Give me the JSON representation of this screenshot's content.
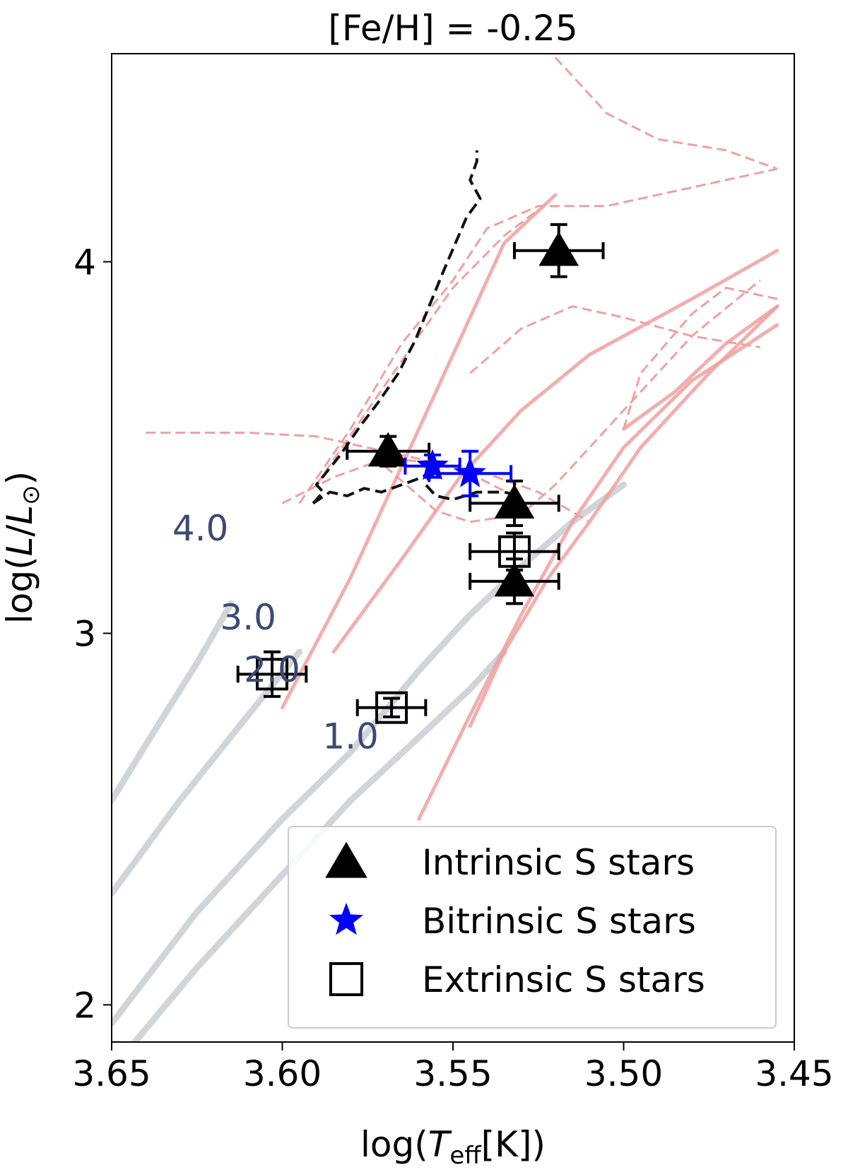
{
  "chart_data": {
    "type": "scatter",
    "title": "[Fe/H] = -0.25",
    "xlabel": "log(T_eff[K])",
    "ylabel": "log(L/L_⊙)",
    "x_axis_reversed": true,
    "xlim": [
      3.65,
      3.45
    ],
    "ylim": [
      1.9,
      4.56
    ],
    "xticks": [
      3.65,
      3.6,
      3.55,
      3.5,
      3.45
    ],
    "xtick_labels": [
      "3.65",
      "3.60",
      "3.55",
      "3.50",
      "3.45"
    ],
    "yticks": [
      2,
      3,
      4
    ],
    "ytick_labels": [
      "2",
      "3",
      "4"
    ],
    "grid": false,
    "legend_position": "lower-right",
    "series": [
      {
        "name": "Intrinsic S stars",
        "marker": "triangle",
        "color": "#000000",
        "points": [
          {
            "x": 3.519,
            "y": 4.03,
            "xerr": 0.013,
            "yerr": 0.07
          },
          {
            "x": 3.569,
            "y": 3.49,
            "xerr": 0.012,
            "yerr": 0.04
          },
          {
            "x": 3.532,
            "y": 3.35,
            "xerr": 0.013,
            "yerr": 0.06
          },
          {
            "x": 3.532,
            "y": 3.14,
            "xerr": 0.013,
            "yerr": 0.06
          }
        ]
      },
      {
        "name": "Bitrinsic S stars",
        "marker": "star",
        "color": "#0000ff",
        "points": [
          {
            "x": 3.556,
            "y": 3.45,
            "xerr": 0.008,
            "yerr": 0.03
          },
          {
            "x": 3.545,
            "y": 3.43,
            "xerr": 0.012,
            "yerr": 0.06
          }
        ]
      },
      {
        "name": "Extrinsic S stars",
        "marker": "open-square",
        "color": "#000000",
        "points": [
          {
            "x": 3.603,
            "y": 2.89,
            "xerr": 0.01,
            "yerr": 0.06
          },
          {
            "x": 3.568,
            "y": 2.8,
            "xerr": 0.01,
            "yerr": 0.025
          },
          {
            "x": 3.532,
            "y": 3.22,
            "xerr": 0.013,
            "yerr": 0.05
          }
        ]
      }
    ],
    "mass_labels": [
      {
        "text": "4.0",
        "x": 3.624,
        "y": 3.25
      },
      {
        "text": "3.0",
        "x": 3.61,
        "y": 3.01
      },
      {
        "text": "2.0",
        "x": 3.603,
        "y": 2.87
      },
      {
        "text": "1.0",
        "x": 3.58,
        "y": 2.69
      }
    ],
    "tracks": {
      "pink_color": "#f0a0a0",
      "grey_color": "#c9cdd2",
      "black_dashed_color": "#111111",
      "pink_solid": [
        [
          [
            3.6,
            2.8
          ],
          [
            3.58,
            3.15
          ],
          [
            3.56,
            3.55
          ],
          [
            3.545,
            3.85
          ],
          [
            3.535,
            4.05
          ],
          [
            3.52,
            4.18
          ]
        ],
        [
          [
            3.585,
            2.95
          ],
          [
            3.565,
            3.2
          ],
          [
            3.548,
            3.42
          ],
          [
            3.53,
            3.6
          ],
          [
            3.51,
            3.75
          ],
          [
            3.48,
            3.9
          ],
          [
            3.455,
            4.03
          ]
        ],
        [
          [
            3.56,
            2.5
          ],
          [
            3.545,
            2.78
          ],
          [
            3.53,
            3.05
          ],
          [
            3.515,
            3.3
          ],
          [
            3.5,
            3.5
          ],
          [
            3.48,
            3.68
          ],
          [
            3.455,
            3.83
          ]
        ],
        [
          [
            3.545,
            2.75
          ],
          [
            3.535,
            2.95
          ],
          [
            3.522,
            3.15
          ],
          [
            3.51,
            3.3
          ],
          [
            3.495,
            3.5
          ],
          [
            3.475,
            3.7
          ],
          [
            3.455,
            3.88
          ]
        ],
        [
          [
            3.5,
            3.55
          ],
          [
            3.485,
            3.65
          ],
          [
            3.47,
            3.78
          ],
          [
            3.455,
            3.88
          ]
        ]
      ],
      "pink_dashed": [
        [
          [
            3.64,
            3.54
          ],
          [
            3.61,
            3.54
          ],
          [
            3.59,
            3.53
          ],
          [
            3.575,
            3.5
          ],
          [
            3.56,
            3.47
          ],
          [
            3.545,
            3.43
          ],
          [
            3.53,
            3.36
          ]
        ],
        [
          [
            3.595,
            3.35
          ],
          [
            3.58,
            3.55
          ],
          [
            3.565,
            3.78
          ],
          [
            3.55,
            3.95
          ],
          [
            3.54,
            4.09
          ],
          [
            3.525,
            4.15
          ],
          [
            3.505,
            4.15
          ],
          [
            3.48,
            4.2
          ],
          [
            3.455,
            4.25
          ]
        ],
        [
          [
            3.57,
            3.45
          ],
          [
            3.555,
            3.33
          ],
          [
            3.545,
            3.3
          ],
          [
            3.53,
            3.32
          ],
          [
            3.52,
            3.4
          ],
          [
            3.5,
            3.6
          ],
          [
            3.48,
            3.8
          ],
          [
            3.46,
            3.95
          ]
        ],
        [
          [
            3.52,
            4.55
          ],
          [
            3.505,
            4.4
          ],
          [
            3.49,
            4.33
          ],
          [
            3.47,
            4.3
          ],
          [
            3.455,
            4.25
          ]
        ],
        [
          [
            3.5,
            3.55
          ],
          [
            3.495,
            3.7
          ],
          [
            3.48,
            3.86
          ],
          [
            3.47,
            3.93
          ],
          [
            3.455,
            3.9
          ]
        ],
        [
          [
            3.545,
            3.7
          ],
          [
            3.53,
            3.82
          ],
          [
            3.515,
            3.88
          ],
          [
            3.5,
            3.85
          ],
          [
            3.48,
            3.8
          ],
          [
            3.46,
            3.77
          ]
        ],
        [
          [
            3.59,
            3.4
          ],
          [
            3.575,
            3.6
          ],
          [
            3.56,
            3.8
          ],
          [
            3.55,
            3.93
          ],
          [
            3.535,
            4.07
          ],
          [
            3.525,
            4.14
          ]
        ],
        [
          [
            3.6,
            3.35
          ],
          [
            3.585,
            3.42
          ],
          [
            3.57,
            3.47
          ],
          [
            3.555,
            3.46
          ],
          [
            3.54,
            3.43
          ],
          [
            3.525,
            3.38
          ],
          [
            3.51,
            3.3
          ]
        ]
      ],
      "grey": [
        [
          [
            3.65,
            2.3
          ],
          [
            3.63,
            2.55
          ],
          [
            3.61,
            2.78
          ],
          [
            3.595,
            2.95
          ]
        ],
        [
          [
            3.65,
            1.95
          ],
          [
            3.625,
            2.25
          ],
          [
            3.6,
            2.5
          ],
          [
            3.58,
            2.68
          ],
          [
            3.56,
            2.9
          ],
          [
            3.545,
            3.05
          ],
          [
            3.53,
            3.18
          ],
          [
            3.515,
            3.3
          ],
          [
            3.5,
            3.4
          ]
        ],
        [
          [
            3.645,
            1.88
          ],
          [
            3.625,
            2.1
          ],
          [
            3.6,
            2.35
          ],
          [
            3.58,
            2.55
          ],
          [
            3.56,
            2.72
          ],
          [
            3.545,
            2.85
          ],
          [
            3.535,
            2.95
          ]
        ],
        [
          [
            3.65,
            2.55
          ],
          [
            3.64,
            2.7
          ],
          [
            3.625,
            2.92
          ],
          [
            3.615,
            3.08
          ]
        ]
      ],
      "black_dashed": [
        [
          [
            3.591,
            3.35
          ],
          [
            3.588,
            3.38
          ],
          [
            3.59,
            3.4
          ],
          [
            3.583,
            3.48
          ],
          [
            3.577,
            3.56
          ],
          [
            3.572,
            3.62
          ],
          [
            3.566,
            3.7
          ],
          [
            3.561,
            3.79
          ],
          [
            3.553,
            3.97
          ],
          [
            3.546,
            4.12
          ],
          [
            3.542,
            4.17
          ],
          [
            3.545,
            4.22
          ],
          [
            3.543,
            4.27
          ],
          [
            3.543,
            4.3
          ]
        ],
        [
          [
            3.591,
            3.35
          ],
          [
            3.586,
            3.38
          ],
          [
            3.581,
            3.37
          ],
          [
            3.576,
            3.39
          ],
          [
            3.571,
            3.38
          ],
          [
            3.565,
            3.4
          ],
          [
            3.559,
            3.42
          ],
          [
            3.556,
            3.44
          ]
        ],
        [
          [
            3.556,
            3.44
          ],
          [
            3.558,
            3.4
          ],
          [
            3.555,
            3.37
          ],
          [
            3.55,
            3.36
          ],
          [
            3.543,
            3.38
          ],
          [
            3.535,
            3.38
          ],
          [
            3.53,
            3.37
          ]
        ]
      ]
    }
  }
}
